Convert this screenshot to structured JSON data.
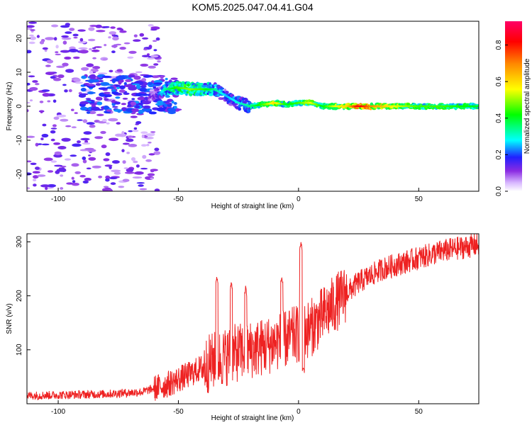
{
  "figure": {
    "title": "KOM5.2025.047.04.41.G04"
  },
  "chart_data": [
    {
      "type": "heatmap",
      "xlabel": "Height of straight line (km)",
      "ylabel": "Frequency (Hz)",
      "xlim": [
        -113,
        75
      ],
      "ylim": [
        -25,
        25
      ],
      "xticks": [
        -100,
        -50,
        0,
        50
      ],
      "yticks": [
        -20,
        -10,
        0,
        10,
        20
      ],
      "colorbar": {
        "label": "Normalized spectral amplitude",
        "range": [
          0,
          0.93
        ],
        "ticks": [
          0.0,
          0.2,
          0.4,
          0.6,
          0.8
        ],
        "colormap": "rainbow"
      },
      "ridge": [
        {
          "x": -60,
          "f": 3.0,
          "a": 0.15
        },
        {
          "x": -55,
          "f": 5.0,
          "a": 0.35
        },
        {
          "x": -50,
          "f": 5.5,
          "a": 0.45
        },
        {
          "x": -45,
          "f": 5.0,
          "a": 0.5
        },
        {
          "x": -40,
          "f": 5.0,
          "a": 0.45
        },
        {
          "x": -35,
          "f": 5.0,
          "a": 0.35
        },
        {
          "x": -30,
          "f": 3.0,
          "a": 0.25
        },
        {
          "x": -25,
          "f": 1.0,
          "a": 0.3
        },
        {
          "x": -20,
          "f": 0.0,
          "a": 0.35
        },
        {
          "x": -15,
          "f": 0.5,
          "a": 0.45
        },
        {
          "x": -10,
          "f": 1.0,
          "a": 0.6
        },
        {
          "x": -5,
          "f": 0.5,
          "a": 0.4
        },
        {
          "x": 0,
          "f": 1.0,
          "a": 0.45
        },
        {
          "x": 5,
          "f": 1.0,
          "a": 0.55
        },
        {
          "x": 10,
          "f": 0.0,
          "a": 0.4
        },
        {
          "x": 15,
          "f": 0.0,
          "a": 0.55
        },
        {
          "x": 20,
          "f": 0.0,
          "a": 0.6
        },
        {
          "x": 25,
          "f": 0.0,
          "a": 0.85
        },
        {
          "x": 30,
          "f": 0.0,
          "a": 0.7
        },
        {
          "x": 40,
          "f": 0.0,
          "a": 0.55
        },
        {
          "x": 50,
          "f": 0.0,
          "a": 0.45
        },
        {
          "x": 60,
          "f": 0.0,
          "a": 0.45
        },
        {
          "x": 75,
          "f": 0.0,
          "a": 0.4
        }
      ]
    },
    {
      "type": "line",
      "xlabel": "Height of straight line (km)",
      "ylabel": "SNR (v/v)",
      "xlim": [
        -113,
        75
      ],
      "ylim": [
        0,
        315
      ],
      "xticks": [
        -100,
        -50,
        0,
        50
      ],
      "yticks": [
        100,
        200,
        300
      ],
      "color": "#ee2222",
      "trend": [
        {
          "x": -113,
          "y": 15
        },
        {
          "x": -80,
          "y": 18
        },
        {
          "x": -65,
          "y": 22
        },
        {
          "x": -55,
          "y": 35
        },
        {
          "x": -45,
          "y": 55
        },
        {
          "x": -35,
          "y": 80
        },
        {
          "x": -25,
          "y": 95
        },
        {
          "x": -15,
          "y": 105
        },
        {
          "x": -5,
          "y": 120
        },
        {
          "x": 5,
          "y": 140
        },
        {
          "x": 15,
          "y": 185
        },
        {
          "x": 25,
          "y": 225
        },
        {
          "x": 35,
          "y": 250
        },
        {
          "x": 50,
          "y": 270
        },
        {
          "x": 60,
          "y": 283
        },
        {
          "x": 75,
          "y": 295
        }
      ],
      "spikes": [
        {
          "x": -34,
          "y": 230
        },
        {
          "x": -28,
          "y": 220
        },
        {
          "x": -22,
          "y": 210
        },
        {
          "x": -7,
          "y": 230
        },
        {
          "x": 1,
          "y": 295
        },
        {
          "x": 2,
          "y": 65
        }
      ]
    }
  ]
}
